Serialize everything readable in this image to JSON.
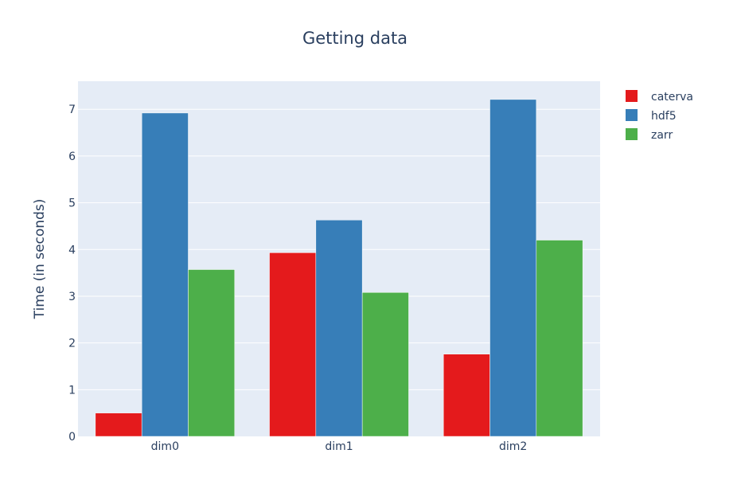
{
  "chart_data": {
    "type": "bar",
    "title": "Getting data",
    "xlabel": "",
    "ylabel": "Time (in seconds)",
    "categories": [
      "dim0",
      "dim1",
      "dim2"
    ],
    "series": [
      {
        "name": "caterva",
        "color": "#e41a1c",
        "values": [
          0.5,
          3.93,
          1.76
        ]
      },
      {
        "name": "hdf5",
        "color": "#377eb8",
        "values": [
          6.92,
          4.63,
          7.21
        ]
      },
      {
        "name": "zarr",
        "color": "#4daf4a",
        "values": [
          3.57,
          3.08,
          4.2
        ]
      }
    ],
    "ylim": [
      0,
      7.6
    ],
    "yticks": [
      0,
      1,
      2,
      3,
      4,
      5,
      6,
      7
    ],
    "grid": true,
    "legend_position": "top-right",
    "plot_background": "#e5ecf6"
  }
}
